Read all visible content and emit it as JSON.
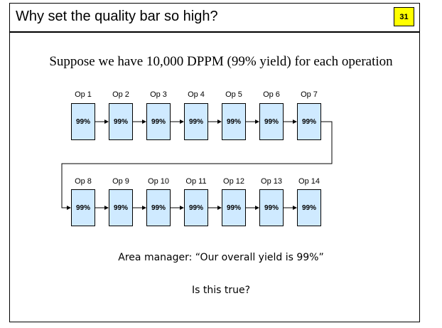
{
  "slide": {
    "title": "Why set the quality bar so high?",
    "slide_number": "31",
    "subtitle": "Suppose we have 10,000 DPPM (99% yield) for each operation",
    "quote": "Area manager:  “Our overall yield is 99%”",
    "question": "Is this true?"
  },
  "operations": {
    "row1": [
      {
        "label": "Op 1",
        "yield": "99%"
      },
      {
        "label": "Op 2",
        "yield": "99%"
      },
      {
        "label": "Op 3",
        "yield": "99%"
      },
      {
        "label": "Op 4",
        "yield": "99%"
      },
      {
        "label": "Op 5",
        "yield": "99%"
      },
      {
        "label": "Op 6",
        "yield": "99%"
      },
      {
        "label": "Op 7",
        "yield": "99%"
      }
    ],
    "row2": [
      {
        "label": "Op 8",
        "yield": "99%"
      },
      {
        "label": "Op 9",
        "yield": "99%"
      },
      {
        "label": "Op 10",
        "yield": "99%"
      },
      {
        "label": "Op 11",
        "yield": "99%"
      },
      {
        "label": "Op 12",
        "yield": "99%"
      },
      {
        "label": "Op 13",
        "yield": "99%"
      },
      {
        "label": "Op 14",
        "yield": "99%"
      }
    ]
  },
  "colors": {
    "op_fill": "#cfeaff",
    "badge_fill": "#ffff00"
  }
}
